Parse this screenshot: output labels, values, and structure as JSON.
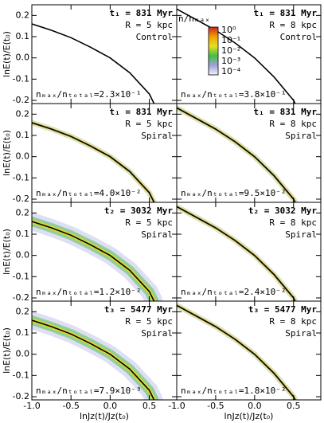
{
  "chart_data": [
    {
      "type": "line",
      "ylabel": "lnE(t)/E(t₀)",
      "annotations": [
        {
          "text": "t₁ = 831 Myr",
          "color": "#2ca02c"
        },
        {
          "text": "R = 5 kpc"
        },
        {
          "text": "Control"
        }
      ],
      "ratio": "nₘₐₓ/nₜₒₜₐₗ=2.3×10⁻¹",
      "density": "none",
      "x": [
        -1,
        -0.75,
        -0.5,
        -0.25,
        0,
        0.25,
        0.5,
        0.56
      ],
      "series": [
        {
          "color": "#000000",
          "values": [
            0.16,
            0.13,
            0.095,
            0.05,
            0.0,
            -0.07,
            -0.17,
            -0.215
          ]
        }
      ],
      "xlim": [
        -1,
        0.85
      ],
      "ylim": [
        -0.215,
        0.25
      ],
      "xticks": [
        -1,
        -0.5,
        0,
        0.5
      ],
      "yticks": [
        -0.2,
        -0.1,
        {
          "value": 0,
          "label": "0.0"
        },
        0.1,
        0.2
      ]
    },
    {
      "type": "line",
      "annotations": [
        {
          "text": "t₁ = 831 Myr",
          "color": "#2ca02c"
        },
        {
          "text": "R = 8 kpc"
        },
        {
          "text": "Control"
        }
      ],
      "ratio": "nₘₐₓ/nₜₒₜₐₗ=3.8×10⁻¹",
      "density": "none",
      "colorbar": {
        "label": "n/nₘₐₓ",
        "ticks": [
          "10⁰",
          "10⁻¹",
          "10⁻²",
          "10⁻³",
          "10⁻⁴"
        ]
      },
      "x": [
        -1,
        -0.75,
        -0.5,
        -0.25,
        0,
        0.25,
        0.5,
        0.52
      ],
      "series": [
        {
          "color": "#000000",
          "values": [
            0.23,
            0.18,
            0.13,
            0.07,
            0.0,
            -0.09,
            -0.2,
            -0.215
          ]
        }
      ],
      "xlim": [
        -1,
        0.85
      ],
      "ylim": [
        -0.215,
        0.25
      ],
      "xticks": [
        -1,
        -0.5,
        0,
        0.5
      ],
      "yticks": [
        -0.2,
        -0.1,
        0,
        0.1,
        0.2
      ]
    },
    {
      "type": "line",
      "ylabel": "lnE(t)/E(t₀)",
      "annotations": [
        {
          "text": "t₁ = 831 Myr",
          "color": "#2ca02c"
        },
        {
          "text": "R = 5 kpc"
        },
        {
          "text": "Spiral"
        }
      ],
      "ratio": "nₘₐₓ/nₜₒₜₐₗ=4.0×10⁻²",
      "density": "narrow",
      "x": [
        -1,
        -0.75,
        -0.5,
        -0.25,
        0,
        0.25,
        0.5,
        0.56
      ],
      "series": [
        {
          "color": "#000000",
          "values": [
            0.16,
            0.13,
            0.095,
            0.05,
            0.0,
            -0.07,
            -0.17,
            -0.215
          ]
        }
      ],
      "xlim": [
        -1,
        0.85
      ],
      "ylim": [
        -0.215,
        0.25
      ],
      "xticks": [
        -1,
        -0.5,
        0,
        0.5
      ],
      "yticks": [
        -0.2,
        -0.1,
        {
          "value": 0,
          "label": "0.0"
        },
        0.1,
        0.2
      ]
    },
    {
      "type": "line",
      "annotations": [
        {
          "text": "t₁ = 831 Myr",
          "color": "#2ca02c"
        },
        {
          "text": "R = 8 kpc"
        },
        {
          "text": "Spiral"
        }
      ],
      "ratio": "nₘₐₓ/nₜₒₜₐₗ=9.5×10⁻²",
      "density": "narrow",
      "x": [
        -1,
        -0.75,
        -0.5,
        -0.25,
        0,
        0.25,
        0.5,
        0.52
      ],
      "series": [
        {
          "color": "#000000",
          "values": [
            0.23,
            0.18,
            0.13,
            0.07,
            0.0,
            -0.09,
            -0.2,
            -0.215
          ]
        }
      ],
      "xlim": [
        -1,
        0.85
      ],
      "ylim": [
        -0.215,
        0.25
      ],
      "xticks": [
        -1,
        -0.5,
        0,
        0.5
      ],
      "yticks": [
        -0.2,
        -0.1,
        0,
        0.1,
        0.2
      ]
    },
    {
      "type": "line",
      "ylabel": "lnE(t)/E(t₀)",
      "annotations": [
        {
          "text": "t₂ = 3032 Myr",
          "color": "#d62020"
        },
        {
          "text": "R = 5 kpc"
        },
        {
          "text": "Spiral"
        }
      ],
      "ratio": "nₘₐₓ/nₜₒₜₐₗ=1.2×10⁻²",
      "density": "wide",
      "x": [
        -1,
        -0.75,
        -0.5,
        -0.25,
        0,
        0.25,
        0.5,
        0.56
      ],
      "series": [
        {
          "color": "#000000",
          "values": [
            0.16,
            0.13,
            0.095,
            0.05,
            0.0,
            -0.07,
            -0.17,
            -0.215
          ]
        }
      ],
      "xlim": [
        -1,
        0.85
      ],
      "ylim": [
        -0.215,
        0.25
      ],
      "xticks": [
        -1,
        -0.5,
        0,
        0.5
      ],
      "yticks": [
        -0.2,
        -0.1,
        {
          "value": 0,
          "label": "0.0"
        },
        0.1,
        0.2
      ]
    },
    {
      "type": "line",
      "annotations": [
        {
          "text": "t₂ = 3032 Myr",
          "color": "#d62020"
        },
        {
          "text": "R = 8 kpc"
        },
        {
          "text": "Spiral"
        }
      ],
      "ratio": "nₘₐₓ/nₜₒₜₐₗ=2.4×10⁻²",
      "density": "narrow",
      "x": [
        -1,
        -0.75,
        -0.5,
        -0.25,
        0,
        0.25,
        0.5,
        0.52
      ],
      "series": [
        {
          "color": "#000000",
          "values": [
            0.23,
            0.18,
            0.13,
            0.07,
            0.0,
            -0.09,
            -0.2,
            -0.215
          ]
        }
      ],
      "xlim": [
        -1,
        0.85
      ],
      "ylim": [
        -0.215,
        0.25
      ],
      "xticks": [
        -1,
        -0.5,
        0,
        0.5
      ],
      "yticks": [
        -0.2,
        -0.1,
        0,
        0.1,
        0.2
      ]
    },
    {
      "type": "line",
      "ylabel": "lnE(t)/E(t₀)",
      "xlabel": "lnJz(t)/Jz(t₀)",
      "annotations": [
        {
          "text": "t₃ = 5477 Myr",
          "color": "#f0a000"
        },
        {
          "text": "R = 5 kpc"
        },
        {
          "text": "Spiral"
        }
      ],
      "ratio": "nₘₐₓ/nₜₒₜₐₗ=7.9×10⁻³",
      "density": "wide",
      "x": [
        -1,
        -0.75,
        -0.5,
        -0.25,
        0,
        0.25,
        0.5,
        0.56
      ],
      "series": [
        {
          "color": "#000000",
          "values": [
            0.16,
            0.13,
            0.095,
            0.05,
            0.0,
            -0.07,
            -0.17,
            -0.215
          ]
        }
      ],
      "xlim": [
        -1,
        0.85
      ],
      "ylim": [
        -0.215,
        0.25
      ],
      "xticks": [
        {
          "value": -1,
          "label": "-1.0"
        },
        -0.5,
        {
          "value": 0,
          "label": "0.0"
        },
        0.5
      ],
      "yticks": [
        -0.2,
        -0.1,
        {
          "value": 0,
          "label": "0.0"
        },
        0.1,
        0.2
      ]
    },
    {
      "type": "line",
      "xlabel": "lnJz(t)/Jz(t₀)",
      "annotations": [
        {
          "text": "t₃ = 5477 Myr",
          "color": "#f0a000"
        },
        {
          "text": "R = 8 kpc"
        },
        {
          "text": "Spiral"
        }
      ],
      "ratio": "nₘₐₓ/nₜₒₜₐₗ=1.8×10⁻²",
      "density": "narrow",
      "x": [
        -1,
        -0.75,
        -0.5,
        -0.25,
        0,
        0.25,
        0.5,
        0.52
      ],
      "series": [
        {
          "color": "#000000",
          "values": [
            0.23,
            0.18,
            0.13,
            0.07,
            0.0,
            -0.09,
            -0.2,
            -0.215
          ]
        }
      ],
      "xlim": [
        -1,
        0.85
      ],
      "ylim": [
        -0.215,
        0.25
      ],
      "xticks": [
        {
          "value": -1,
          "label": "-1.0"
        },
        -0.5,
        {
          "value": 0,
          "label": "0.0"
        },
        0.5
      ],
      "yticks": [
        -0.2,
        -0.1,
        0,
        0.1,
        0.2
      ]
    }
  ]
}
